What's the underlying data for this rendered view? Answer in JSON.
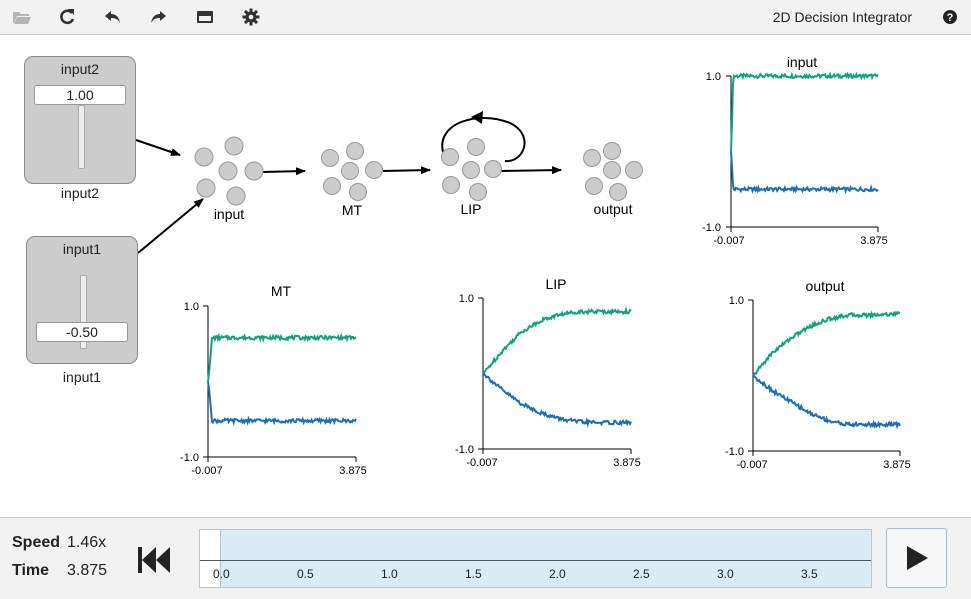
{
  "app": {
    "title": "2D Decision Integrator"
  },
  "toolbar": {
    "buttons": [
      {
        "name": "open-folder",
        "icon": "folder-open-icon"
      },
      {
        "name": "reset",
        "icon": "refresh-icon"
      },
      {
        "name": "undo",
        "icon": "undo-icon"
      },
      {
        "name": "redo",
        "icon": "redo-icon"
      },
      {
        "name": "minimap",
        "icon": "minimap-icon"
      },
      {
        "name": "settings",
        "icon": "gear-icon"
      },
      {
        "name": "help",
        "icon": "help-icon"
      }
    ]
  },
  "sliders": [
    {
      "title": "input2",
      "value": "1.00",
      "label": "input2",
      "level": 1.0
    },
    {
      "title": "input1",
      "value": "-0.50",
      "label": "input1",
      "level": -0.5
    }
  ],
  "network": {
    "nodes": [
      "input",
      "MT",
      "LIP",
      "output"
    ]
  },
  "plots": [
    {
      "title": "input",
      "ymax": "1.0",
      "ymin": "-1.0",
      "xmin": "-0.007",
      "xmax": "3.875",
      "chart_data": {
        "type": "line",
        "title": "input",
        "xlim": [
          -0.007,
          3.875
        ],
        "ylim": [
          -1.0,
          1.0
        ],
        "series": [
          {
            "color": "#13a082",
            "x": [
              -0.007,
              0.0,
              0.05,
              3.875
            ],
            "y": [
              0.0,
              0.0,
              1.0,
              1.0
            ]
          },
          {
            "color": "#1f6fb0",
            "x": [
              -0.007,
              0.0,
              0.05,
              3.875
            ],
            "y": [
              0.0,
              0.0,
              -0.5,
              -0.5
            ]
          }
        ]
      }
    },
    {
      "title": "MT",
      "ymax": "1.0",
      "ymin": "-1.0",
      "xmin": "-0.007",
      "xmax": "3.875",
      "chart_data": {
        "type": "line",
        "title": "MT",
        "xlim": [
          -0.007,
          3.875
        ],
        "ylim": [
          -1.0,
          1.0
        ],
        "series": [
          {
            "color": "#13a082",
            "x": [
              -0.007,
              0.0,
              0.1,
              3.875
            ],
            "y": [
              0.0,
              0.0,
              0.58,
              0.58
            ]
          },
          {
            "color": "#1f6fb0",
            "x": [
              -0.007,
              0.0,
              0.1,
              3.875
            ],
            "y": [
              0.0,
              0.0,
              -0.52,
              -0.52
            ]
          }
        ]
      }
    },
    {
      "title": "LIP",
      "ymax": "1.0",
      "ymin": "-1.0",
      "xmin": "-0.007",
      "xmax": "3.875",
      "chart_data": {
        "type": "line",
        "title": "LIP",
        "xlim": [
          -0.007,
          3.875
        ],
        "ylim": [
          -1.0,
          1.0
        ],
        "series": [
          {
            "color": "#13a082",
            "x": [
              0.0,
              0.5,
              1.0,
              1.5,
              2.0,
              2.5,
              3.0,
              3.875
            ],
            "y": [
              0.0,
              0.3,
              0.55,
              0.7,
              0.78,
              0.82,
              0.82,
              0.82
            ]
          },
          {
            "color": "#1f6fb0",
            "x": [
              0.0,
              0.5,
              1.0,
              1.5,
              2.0,
              2.5,
              3.0,
              3.875
            ],
            "y": [
              0.0,
              -0.22,
              -0.4,
              -0.52,
              -0.6,
              -0.64,
              -0.65,
              -0.65
            ]
          }
        ]
      }
    },
    {
      "title": "output",
      "ymax": "1.0",
      "ymin": "-1.0",
      "xmin": "-0.007",
      "xmax": "3.875",
      "chart_data": {
        "type": "line",
        "title": "output",
        "xlim": [
          -0.007,
          3.875
        ],
        "ylim": [
          -1.0,
          1.0
        ],
        "series": [
          {
            "color": "#13a082",
            "x": [
              0.0,
              0.5,
              1.0,
              1.5,
              2.0,
              2.5,
              3.0,
              3.875
            ],
            "y": [
              0.0,
              0.3,
              0.5,
              0.65,
              0.75,
              0.8,
              0.8,
              0.82
            ]
          },
          {
            "color": "#1f6fb0",
            "x": [
              0.0,
              0.5,
              1.0,
              1.5,
              2.0,
              2.5,
              3.0,
              3.875
            ],
            "y": [
              0.0,
              -0.2,
              -0.35,
              -0.5,
              -0.6,
              -0.65,
              -0.65,
              -0.65
            ]
          }
        ]
      }
    }
  ],
  "playback": {
    "speed_label": "Speed",
    "speed_value": "1.46x",
    "time_label": "Time",
    "time_value": "3.875",
    "ticks": [
      "0.0",
      "0.5",
      "1.0",
      "1.5",
      "2.0",
      "2.5",
      "3.0",
      "3.5"
    ]
  }
}
